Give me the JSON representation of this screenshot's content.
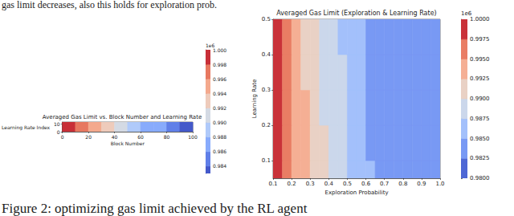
{
  "top_text": "gas limit decreases, also this holds for exploration prob.",
  "caption": "Figure 2: optimizing gas limit achieved by the RL agent",
  "chart_data": [
    {
      "type": "contour",
      "title": "Averaged Gas Limit vs. Block Number and Learning Rate",
      "x_label": "Block Number",
      "y_label": "Learning Rate Index",
      "xlim": [
        0,
        100
      ],
      "xticks": [
        0,
        20,
        40,
        60,
        80,
        100
      ],
      "ylim": [
        0,
        12
      ],
      "yticks": [
        0,
        10
      ],
      "x_edges": [
        0,
        10,
        20,
        30,
        40,
        50,
        60,
        70,
        80,
        90,
        100
      ],
      "y_edges": [
        0,
        12
      ],
      "cells": [
        [
          0.9992,
          0.9975,
          0.9955,
          0.9935,
          0.9918,
          0.9898,
          0.9878,
          0.9862,
          0.9848,
          0.9836
        ]
      ],
      "colorbar": {
        "lim": [
          0.983,
          1.0
        ],
        "ticks": [
          0.984,
          0.986,
          0.988,
          {
            "value": 0.99,
            "label": "0.990"
          },
          0.992,
          0.994,
          0.996,
          0.998,
          {
            "value": 1,
            "label": "1.000"
          }
        ],
        "multiplier_label": "1e6"
      }
    },
    {
      "type": "contour",
      "title": "Averaged Gas Limit (Exploration & Learning Rate)",
      "x_label": "Exploration Probability",
      "y_label": "Learning Rate",
      "xlim": [
        0.1,
        1.0
      ],
      "xticks": [
        0.1,
        0.2,
        0.3,
        0.4,
        0.5,
        0.6,
        0.7,
        0.8,
        0.9,
        {
          "value": 1,
          "label": "1.0"
        }
      ],
      "ylim": [
        0.05,
        0.5
      ],
      "yticks": [
        0.1,
        0.2,
        0.3,
        0.4,
        0.5
      ],
      "x_edges": [
        0.1,
        0.15,
        0.2,
        0.25,
        0.3,
        0.35,
        0.4,
        0.45,
        0.5,
        0.55,
        0.6,
        0.65,
        0.7,
        0.75,
        0.8,
        0.85,
        0.9,
        0.95,
        1.0
      ],
      "y_edges": [
        0.05,
        0.1,
        0.2,
        0.3,
        0.4,
        0.5
      ],
      "cells": [
        [
          0.9985,
          0.9965,
          0.9942,
          0.993,
          0.9912,
          0.9903,
          0.9888,
          0.988,
          0.9868,
          0.986,
          0.9852,
          0.9843,
          0.984,
          0.984,
          0.984,
          0.984,
          0.984,
          0.984
        ],
        [
          0.998,
          0.9962,
          0.994,
          0.9928,
          0.991,
          0.9901,
          0.9886,
          0.9878,
          0.9866,
          0.9858,
          0.985,
          0.9842,
          0.984,
          0.984,
          0.984,
          0.984,
          0.984,
          0.984
        ],
        [
          0.9977,
          0.9958,
          0.9938,
          0.9926,
          0.9908,
          0.9899,
          0.9885,
          0.9877,
          0.9864,
          0.9856,
          0.9848,
          0.9841,
          0.984,
          0.984,
          0.984,
          0.984,
          0.984,
          0.984
        ],
        [
          0.9976,
          0.9955,
          0.9936,
          0.9924,
          0.9906,
          0.9898,
          0.9884,
          0.9876,
          0.9863,
          0.9855,
          0.9847,
          0.984,
          0.984,
          0.984,
          0.984,
          0.984,
          0.984,
          0.984
        ],
        [
          0.9976,
          0.9952,
          0.9934,
          0.9922,
          0.9904,
          0.9896,
          0.9883,
          0.9875,
          0.9862,
          0.9854,
          0.9846,
          0.984,
          0.984,
          0.984,
          0.984,
          0.984,
          0.984,
          0.984
        ]
      ],
      "colorbar": {
        "lim": [
          0.98,
          1.0
        ],
        "ticks": [
          {
            "value": 0.98,
            "label": "0.9800"
          },
          0.9825,
          {
            "value": 0.985,
            "label": "0.9850"
          },
          0.9875,
          {
            "value": 0.99,
            "label": "0.9900"
          },
          0.9925,
          {
            "value": 0.995,
            "label": "0.9950"
          },
          0.9975,
          {
            "value": 1,
            "label": "1.0000"
          }
        ],
        "multiplier_label": "1e6"
      }
    }
  ]
}
